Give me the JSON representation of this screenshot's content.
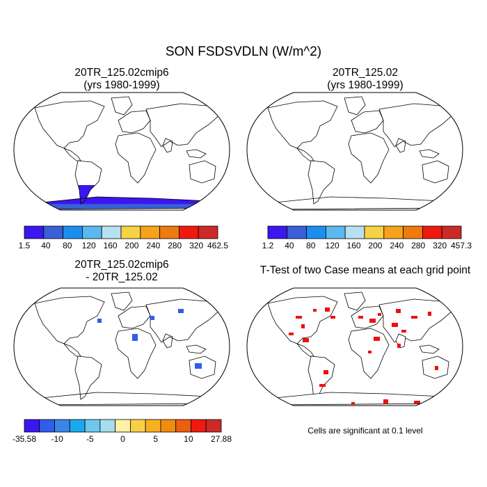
{
  "figure": {
    "title": "SON FSDSVDLN (W/m^2)",
    "footnote": "Cells are significant at 0.1 level"
  },
  "panels": [
    {
      "title_line1": "20TR_125.02cmip6",
      "title_line2": "(yrs 1980-1999)",
      "colorbar": {
        "labels": [
          "1.5",
          "40",
          "80",
          "120",
          "160",
          "200",
          "240",
          "280",
          "320",
          "462.5"
        ],
        "colors": [
          "#3b16ef",
          "#3a5fd9",
          "#1a8ff0",
          "#5ab8ee",
          "#b8e0f0",
          "#f6d244",
          "#f6a21c",
          "#ee7a10",
          "#ee1a10",
          "#cc2a28"
        ]
      }
    },
    {
      "title_line1": "20TR_125.02",
      "title_line2": "(yrs 1980-1999)",
      "colorbar": {
        "labels": [
          "1.2",
          "40",
          "80",
          "120",
          "160",
          "200",
          "240",
          "280",
          "320",
          "457.3"
        ],
        "colors": [
          "#3b16ef",
          "#3a5fd9",
          "#1a8ff0",
          "#5ab8ee",
          "#b8e0f0",
          "#f6d244",
          "#f6a21c",
          "#ee7a10",
          "#ee1a10",
          "#cc2a28"
        ]
      }
    },
    {
      "title_line1": "20TR_125.02cmip6",
      "title_line2": "- 20TR_125.02",
      "colorbar": {
        "labels": [
          "-35.58",
          "-10",
          "-5",
          "0",
          "5",
          "10",
          "27.88"
        ],
        "colors": [
          "#3b16ef",
          "#2f5ee8",
          "#3a86e6",
          "#1aa8ee",
          "#6ec8ee",
          "#a8dcf0",
          "#fff2a8",
          "#f8d048",
          "#f8b020",
          "#f08c10",
          "#ee5e10",
          "#ee1a10",
          "#cc2a28"
        ]
      }
    },
    {
      "title_line1": "T-Test of two Case means at each grid point"
    }
  ],
  "colors": {
    "ocean": "#ffffff",
    "significant": "#ee1010",
    "coastline": "#000000"
  }
}
